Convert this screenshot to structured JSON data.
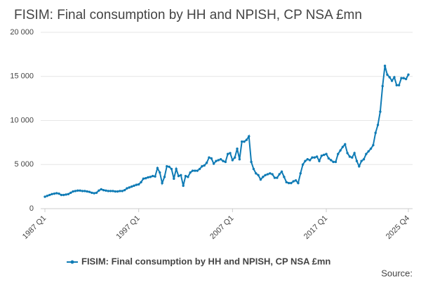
{
  "chart_data": {
    "type": "line",
    "title": "FISIM: Final consumption by HH and NPISH, CP NSA £mn",
    "source": "Source:",
    "categories": [
      "1987 Q1",
      null,
      null,
      null,
      null,
      null,
      null,
      null,
      null,
      null,
      null,
      null,
      null,
      null,
      null,
      null,
      null,
      null,
      null,
      null,
      null,
      null,
      null,
      null,
      null,
      null,
      null,
      null,
      null,
      null,
      null,
      null,
      null,
      null,
      null,
      null,
      null,
      null,
      null,
      null,
      "1997 Q1",
      null,
      null,
      null,
      null,
      null,
      null,
      null,
      null,
      null,
      null,
      null,
      null,
      null,
      null,
      null,
      null,
      null,
      null,
      null,
      null,
      null,
      null,
      null,
      null,
      null,
      null,
      null,
      null,
      null,
      null,
      null,
      null,
      null,
      null,
      null,
      null,
      null,
      null,
      null,
      "2007 Q1",
      null,
      null,
      null,
      null,
      null,
      null,
      null,
      null,
      null,
      null,
      null,
      null,
      null,
      null,
      null,
      null,
      null,
      null,
      null,
      null,
      null,
      null,
      null,
      null,
      null,
      null,
      null,
      null,
      null,
      null,
      null,
      null,
      null,
      null,
      null,
      null,
      null,
      null,
      null,
      "2017 Q1",
      null,
      null,
      null,
      null,
      null,
      null,
      null,
      null,
      null,
      null,
      null,
      null,
      null,
      null,
      null,
      null,
      null,
      null,
      null,
      null,
      null,
      null,
      null,
      null,
      null,
      null,
      null,
      null,
      null,
      null,
      null,
      null,
      null,
      null,
      "2025 Q4"
    ],
    "series": [
      {
        "name": "FISIM: Final consumption by HH and NPISH, CP NSA £mn",
        "color": "#0f7bb5",
        "values": [
          1350,
          1450,
          1550,
          1650,
          1700,
          1750,
          1700,
          1550,
          1550,
          1600,
          1650,
          1800,
          1950,
          2000,
          2050,
          2050,
          2000,
          2000,
          1950,
          1900,
          1800,
          1750,
          1800,
          2050,
          2200,
          2100,
          2050,
          2000,
          2000,
          2000,
          1950,
          1950,
          2000,
          2000,
          2100,
          2300,
          2400,
          2500,
          2600,
          2700,
          2750,
          3000,
          3400,
          3450,
          3550,
          3600,
          3700,
          3650,
          4600,
          4100,
          2900,
          3600,
          4800,
          4750,
          4500,
          3400,
          4500,
          3700,
          3800,
          2600,
          3700,
          3600,
          4100,
          4300,
          4300,
          4300,
          4500,
          4800,
          4900,
          5200,
          5800,
          5700,
          5100,
          5400,
          5500,
          5600,
          5400,
          5300,
          6200,
          6300,
          5500,
          5800,
          6800,
          5600,
          7600,
          7600,
          7800,
          8200,
          5300,
          4500,
          4000,
          3800,
          3300,
          3600,
          3800,
          3900,
          4000,
          3900,
          3500,
          3500,
          3900,
          4200,
          3600,
          3000,
          2900,
          2900,
          3100,
          3200,
          2900,
          4000,
          5000,
          5400,
          5600,
          5500,
          5800,
          5800,
          5900,
          5400,
          6000,
          6100,
          6200,
          5700,
          5500,
          5300,
          5300,
          6200,
          6600,
          7000,
          7300,
          6300,
          5900,
          5800,
          6300,
          5400,
          4800,
          5400,
          5600,
          6200,
          6500,
          6800,
          7200,
          8600,
          9500,
          11000,
          13900,
          16200,
          15200,
          14900,
          14500,
          14900,
          14000,
          14000,
          14800,
          14800,
          14700,
          15200
        ]
      }
    ],
    "ylim": [
      0,
      20000
    ],
    "yticks": [
      0,
      {
        "value": 5000,
        "label": "5 000"
      },
      {
        "value": 10000,
        "label": "10 000"
      },
      {
        "value": 15000,
        "label": "15 000"
      },
      {
        "value": 20000,
        "label": "20 000"
      }
    ],
    "grid": true
  }
}
